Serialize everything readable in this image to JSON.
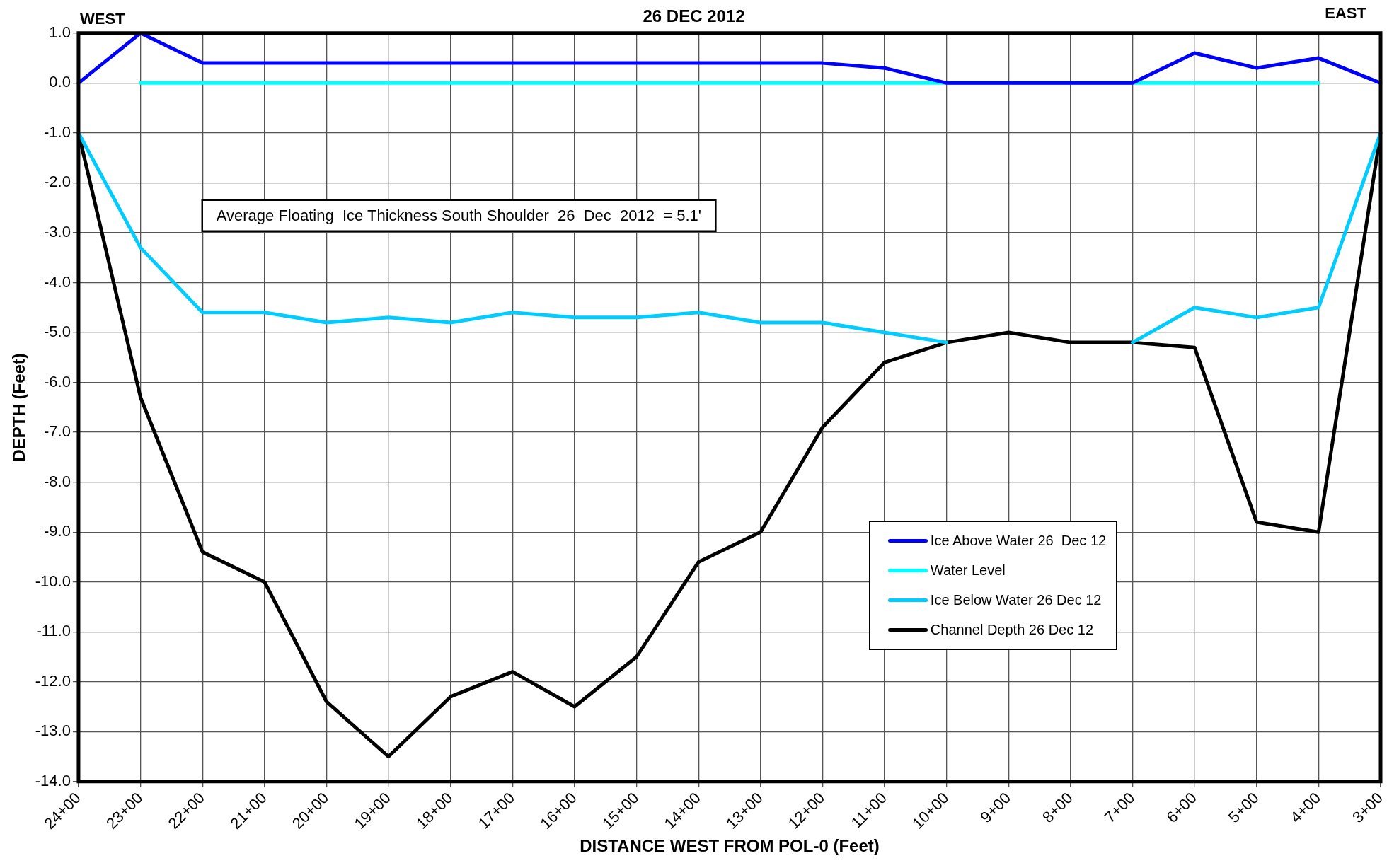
{
  "chart_data": {
    "type": "line",
    "title": "26 DEC 2012",
    "xlabel": "DISTANCE WEST FROM POL-0 (Feet)",
    "ylabel": "DEPTH (Feet)",
    "annotations": [
      "WEST",
      "EAST",
      "Average Floating  Ice Thickness South Shoulder  26  Dec  2012  = 5.1'"
    ],
    "categories": [
      "24+00",
      "23+00",
      "22+00",
      "21+00",
      "20+00",
      "19+00",
      "18+00",
      "17+00",
      "16+00",
      "15+00",
      "14+00",
      "13+00",
      "12+00",
      "11+00",
      "10+00",
      "9+00",
      "8+00",
      "7+00",
      "6+00",
      "5+00",
      "4+00",
      "3+00"
    ],
    "ylim": [
      -14,
      1
    ],
    "yticks": [
      {
        "value": 1,
        "label": "1.0"
      },
      {
        "value": 0,
        "label": "0.0"
      },
      {
        "value": -1,
        "label": "-1.0"
      },
      {
        "value": -2,
        "label": "-2.0"
      },
      {
        "value": -3,
        "label": "-3.0"
      },
      {
        "value": -4,
        "label": "-4.0"
      },
      {
        "value": -5,
        "label": "-5.0"
      },
      {
        "value": -6,
        "label": "-6.0"
      },
      {
        "value": -7,
        "label": "-7.0"
      },
      {
        "value": -8,
        "label": "-8.0"
      },
      {
        "value": -9,
        "label": "-9.0"
      },
      {
        "value": -10,
        "label": "-10.0"
      },
      {
        "value": -11,
        "label": "-11.0"
      },
      {
        "value": -12,
        "label": "-12.0"
      },
      {
        "value": -13,
        "label": "-13.0"
      },
      {
        "value": -14,
        "label": "-14.0"
      }
    ],
    "grid": true,
    "legend": "bottom right",
    "marker": "none",
    "line_style": "solid",
    "series": [
      {
        "name": "Ice Above Water 26  Dec 12",
        "color": "#0000ff",
        "values": [
          0,
          1.0,
          0.4,
          0.4,
          0.4,
          0.4,
          0.4,
          0.4,
          0.4,
          0.4,
          0.4,
          0.4,
          0.4,
          0.3,
          0,
          0,
          0,
          0,
          0.6,
          0.3,
          0.5,
          0
        ]
      },
      {
        "name": "Water Level",
        "color": "#00ffff",
        "values": [
          null,
          0,
          0,
          0,
          0,
          0,
          0,
          0,
          0,
          0,
          0,
          0,
          0,
          0,
          0,
          0,
          0,
          0,
          0,
          0,
          0,
          null
        ]
      },
      {
        "name": "Ice Below Water 26 Dec 12",
        "color": "#00ccff",
        "values": [
          -1,
          -3.3,
          -4.6,
          -4.6,
          -4.8,
          -4.7,
          -4.8,
          -4.6,
          -4.7,
          -4.7,
          -4.6,
          -4.8,
          -4.8,
          -5.0,
          -5.2,
          null,
          null,
          -5.2,
          -4.5,
          -4.7,
          -4.5,
          -1.0
        ]
      },
      {
        "name": "Channel Depth 26 Dec 12",
        "color": "#000000",
        "values": [
          -1,
          -6.3,
          -9.4,
          -10.0,
          -12.4,
          -13.5,
          -12.3,
          -11.8,
          -12.5,
          -11.5,
          -9.6,
          -9.0,
          -6.9,
          -5.6,
          -5.2,
          -5.0,
          -5.2,
          -5.2,
          -5.3,
          -8.8,
          -9.0,
          -1.0
        ]
      }
    ]
  }
}
